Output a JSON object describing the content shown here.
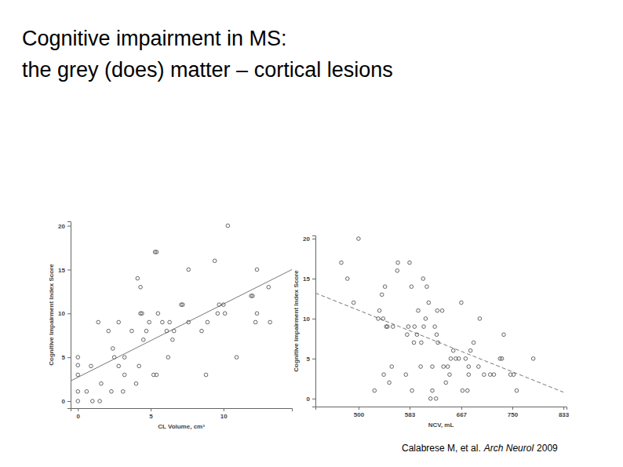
{
  "slide": {
    "title_lines": [
      "Cognitive impairment in MS:",
      "the grey (does) matter – cortical lesions"
    ],
    "citation": {
      "authors": "Calabrese M, et al.",
      "journal": "Arch Neurol",
      "year": "2009"
    }
  },
  "chart_data": [
    {
      "type": "scatter",
      "x_label": "CL Volume, cm³",
      "y_label": "Cognitive Impairment Index Score",
      "marker": "circle-open",
      "color": "#555555",
      "xlim": [
        -0.5,
        14.7
      ],
      "ylim": [
        -0.8,
        20.5
      ],
      "xticks": [
        0,
        5,
        10
      ],
      "yticks": [
        0,
        5,
        10,
        15,
        20
      ],
      "x": [
        0,
        0,
        0,
        0,
        0,
        0.6,
        0.9,
        1,
        1.5,
        1.4,
        1.6,
        2.1,
        2.3,
        2.4,
        2.5,
        2.8,
        2.8,
        3.1,
        3.2,
        3.2,
        3.7,
        4,
        4.1,
        4.2,
        4.3,
        4.3,
        4.4,
        4.5,
        4.7,
        4.9,
        5.2,
        5.3,
        5.4,
        5.4,
        5.5,
        5.8,
        6.1,
        6.2,
        6.3,
        6.5,
        6.6,
        7.1,
        7.2,
        7.6,
        7.6,
        8.5,
        8.8,
        8.9,
        9.4,
        9.6,
        9.7,
        10,
        10.1,
        10.3,
        10.9,
        11.9,
        12,
        12.2,
        12.3,
        12.3,
        13.1,
        13.2
      ],
      "values": [
        5,
        4.1,
        3,
        0,
        1.1,
        1.1,
        4,
        0,
        0,
        9,
        2,
        8,
        1.1,
        6,
        5,
        9,
        4,
        1.1,
        5,
        3,
        8,
        2,
        14,
        4,
        13,
        10,
        10,
        7,
        8,
        9,
        3,
        17,
        17,
        3,
        10,
        9,
        8,
        5,
        9,
        7,
        8,
        11,
        11,
        15,
        9,
        8,
        3,
        9,
        16,
        10,
        11,
        11,
        10,
        20,
        5,
        12,
        12,
        9,
        15,
        10,
        13,
        9
      ],
      "trend": {
        "x": [
          -0.5,
          14.7
        ],
        "values": [
          2.3,
          15.0
        ],
        "line_style": "solid",
        "color": "#777777"
      }
    },
    {
      "type": "scatter",
      "x_label": "NCV, mL",
      "y_label": "Cognitive Impairment Index Score",
      "marker": "circle-open",
      "color": "#555555",
      "xlim": [
        430,
        838
      ],
      "ylim": [
        -1,
        20.4
      ],
      "xticks": [
        500,
        583,
        667,
        750,
        833
      ],
      "yticks": [
        0,
        5,
        10,
        15,
        20
      ],
      "x": [
        472,
        482,
        492,
        500,
        526,
        532,
        534,
        538,
        540,
        541,
        543,
        545,
        547,
        550,
        554,
        556,
        563,
        564,
        577,
        579,
        581,
        583,
        587,
        586,
        590,
        591,
        595,
        597,
        601,
        602,
        605,
        606,
        609,
        611,
        614,
        617,
        620,
        620,
        624,
        626,
        627,
        628,
        629,
        636,
        638,
        642,
        645,
        648,
        650,
        654,
        658,
        663,
        667,
        669,
        674,
        677,
        679,
        679,
        682,
        687,
        695,
        697,
        704,
        714,
        720,
        730,
        733,
        736,
        747,
        752,
        757,
        784
      ],
      "values": [
        17,
        15,
        12,
        20,
        1,
        10,
        11,
        13,
        10,
        3,
        14,
        9,
        9,
        2,
        4,
        9,
        16,
        17,
        3,
        8,
        9,
        17,
        1,
        14,
        7,
        9,
        8,
        11,
        4,
        7,
        15,
        9,
        10,
        14,
        12,
        0,
        4,
        1,
        9,
        0,
        8,
        11,
        7,
        11,
        4,
        2,
        4,
        3,
        5,
        6,
        5,
        5,
        12,
        1,
        5,
        1,
        3,
        4,
        6,
        7,
        4,
        10,
        3,
        3,
        3,
        5,
        5,
        8,
        3,
        3,
        1,
        5
      ],
      "trend": {
        "x": [
          430,
          833
        ],
        "values": [
          13.2,
          0.8
        ],
        "line_style": "dashed",
        "color": "#777777"
      }
    }
  ]
}
